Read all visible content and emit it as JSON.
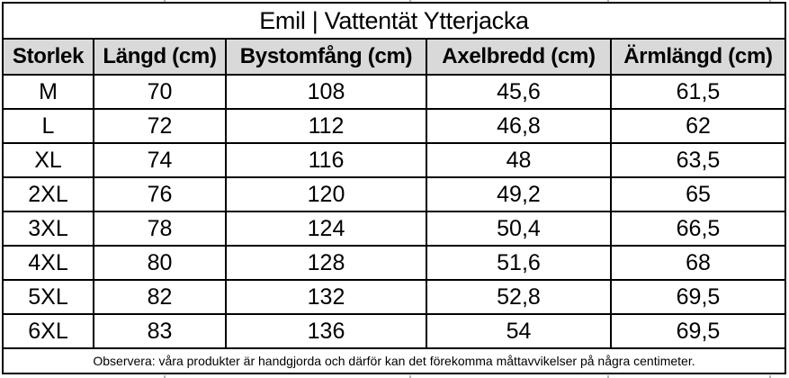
{
  "chart_data": {
    "type": "table",
    "title": "Emil | Vattentät Ytterjacka",
    "columns": [
      "Storlek",
      "Längd (cm)",
      "Bystomfång (cm)",
      "Axelbredd (cm)",
      "Ärmlängd (cm)"
    ],
    "rows": [
      [
        "M",
        "70",
        "108",
        "45,6",
        "61,5"
      ],
      [
        "L",
        "72",
        "112",
        "46,8",
        "62"
      ],
      [
        "XL",
        "74",
        "116",
        "48",
        "63,5"
      ],
      [
        "2XL",
        "76",
        "120",
        "49,2",
        "65"
      ],
      [
        "3XL",
        "78",
        "124",
        "50,4",
        "66,5"
      ],
      [
        "4XL",
        "80",
        "128",
        "51,6",
        "68"
      ],
      [
        "5XL",
        "82",
        "132",
        "52,8",
        "69,5"
      ],
      [
        "6XL",
        "83",
        "136",
        "54",
        "69,5"
      ]
    ],
    "footer_note": "Observera: våra produkter är handgjorda och därför kan det förekomma måttavvikelser på några centimeter."
  },
  "colors": {
    "header_background": "#d9d9d9",
    "border": "#000000",
    "text": "#000000",
    "page_background": "#ffffff"
  }
}
